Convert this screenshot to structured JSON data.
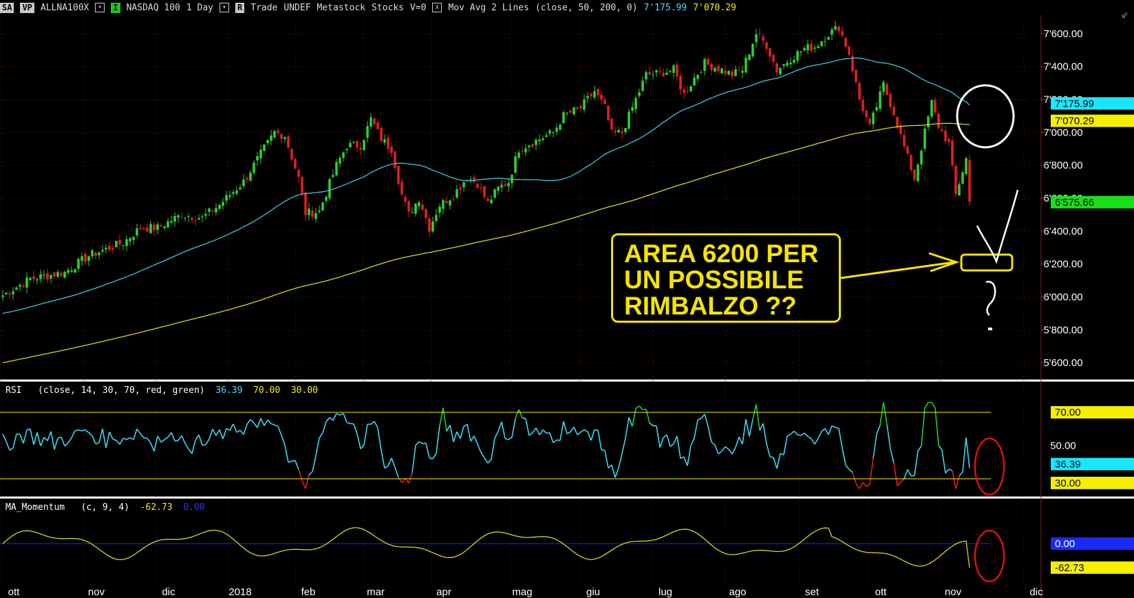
{
  "toolbar": {
    "box1": "SA",
    "box2": "VP",
    "symbol": "ALLNA100X",
    "green_btn": "I",
    "index_name": "NASDAQ 100",
    "interval": "1 Day",
    "r_btn": "R",
    "word1": "Trade",
    "word2": "UNDEF",
    "word3": "Metastock",
    "word4": "Stocks",
    "v0": "V=0",
    "x_btn": "x",
    "indicator": "Mov Avg 2 Lines",
    "indicator_params": "(close,  50,  200,  0)",
    "ma50_value": "7'175.99",
    "ma200_value": "7'070.29"
  },
  "colors": {
    "bg": "#000000",
    "up_candle": "#2fd02f",
    "down_candle": "#e02020",
    "ma50": "#3cc8e0",
    "ma200": "#d8d820",
    "rsi_line": "#3cd8f0",
    "level_line": "#f5f000",
    "momentum_line": "#d8d820",
    "zero_line": "#1a2aff",
    "annotation": "#f5e400",
    "circle_white": "#ffffff",
    "circle_red": "#e01010"
  },
  "annotation": {
    "line1": "AREA 6200 PER",
    "line2": "UN POSSIBILE",
    "line3": "RIMBALZO ??"
  },
  "rsi_panel": {
    "label": "RSI",
    "params": "(close,  14,  30,  70,  red,  green)",
    "value": "36.39",
    "upper": "70.00",
    "lower": "30.00"
  },
  "momentum_panel": {
    "label": "MA_Momentum",
    "params": "(c,  9,  4)",
    "value": "-62.73",
    "signal": "0.00"
  },
  "chart_data": [
    {
      "type": "candlestick",
      "title": "NASDAQ 100",
      "y_ticks": [
        "7'600.00",
        "7'400.00",
        "7'200.00",
        "7'000.00",
        "6'800.00",
        "6'600.00",
        "6'400.00",
        "6'200.00",
        "6'000.00",
        "5'800.00",
        "5'600.00"
      ],
      "ylim": [
        5500,
        7700
      ],
      "x_ticks": [
        "ott",
        "nov",
        "dic",
        "2018",
        "feb",
        "mar",
        "apr",
        "mag",
        "giu",
        "lug",
        "ago",
        "set",
        "ott",
        "nov",
        "dic"
      ],
      "close_anchors": [
        [
          0,
          6010
        ],
        [
          8,
          6110
        ],
        [
          18,
          6150
        ],
        [
          25,
          6250
        ],
        [
          35,
          6330
        ],
        [
          40,
          6420
        ],
        [
          45,
          6420
        ],
        [
          52,
          6500
        ],
        [
          58,
          6480
        ],
        [
          63,
          6560
        ],
        [
          70,
          6700
        ],
        [
          75,
          6870
        ],
        [
          79,
          7000
        ],
        [
          82,
          6980
        ],
        [
          86,
          6720
        ],
        [
          88,
          6510
        ],
        [
          92,
          6520
        ],
        [
          97,
          6800
        ],
        [
          100,
          6920
        ],
        [
          104,
          6920
        ],
        [
          107,
          7080
        ],
        [
          110,
          6960
        ],
        [
          113,
          6900
        ],
        [
          116,
          6620
        ],
        [
          118,
          6500
        ],
        [
          121,
          6600
        ],
        [
          124,
          6420
        ],
        [
          127,
          6560
        ],
        [
          131,
          6620
        ],
        [
          135,
          6730
        ],
        [
          138,
          6690
        ],
        [
          141,
          6570
        ],
        [
          144,
          6660
        ],
        [
          147,
          6700
        ],
        [
          150,
          6900
        ],
        [
          155,
          6950
        ],
        [
          160,
          7000
        ],
        [
          163,
          7100
        ],
        [
          168,
          7150
        ],
        [
          172,
          7250
        ],
        [
          175,
          7150
        ],
        [
          177,
          6990
        ],
        [
          180,
          7000
        ],
        [
          184,
          7200
        ],
        [
          187,
          7350
        ],
        [
          191,
          7360
        ],
        [
          195,
          7380
        ],
        [
          198,
          7230
        ],
        [
          201,
          7330
        ],
        [
          204,
          7420
        ],
        [
          208,
          7390
        ],
        [
          212,
          7350
        ],
        [
          215,
          7380
        ],
        [
          219,
          7600
        ],
        [
          222,
          7530
        ],
        [
          225,
          7380
        ],
        [
          229,
          7450
        ],
        [
          233,
          7510
        ],
        [
          236,
          7520
        ],
        [
          240,
          7600
        ],
        [
          243,
          7640
        ],
        [
          246,
          7480
        ],
        [
          249,
          7200
        ],
        [
          252,
          7030
        ],
        [
          256,
          7290
        ],
        [
          259,
          7120
        ],
        [
          262,
          6910
        ],
        [
          265,
          6720
        ],
        [
          268,
          7000
        ],
        [
          270,
          7180
        ],
        [
          272,
          7040
        ],
        [
          275,
          6930
        ],
        [
          277,
          6620
        ],
        [
          280,
          6840
        ],
        [
          281,
          6576
        ]
      ],
      "ma50_last": 7175.99,
      "ma200_last": 7070.29,
      "price_badge": "6'575.66",
      "ma50_badge": "7'175.99",
      "ma200_badge": "7'070.29",
      "support_level": 6200
    },
    {
      "type": "line",
      "title": "RSI",
      "ylim": [
        20,
        80
      ],
      "y_ticks": [
        "70.00",
        "50.00",
        "30.00"
      ],
      "upper_level": 70,
      "lower_level": 30,
      "last_value": 36.39
    },
    {
      "type": "line",
      "title": "MA_Momentum",
      "y_ticks": [
        "0.00",
        "-62.73"
      ],
      "last_value": -62.73,
      "signal_value": 0.0
    }
  ]
}
